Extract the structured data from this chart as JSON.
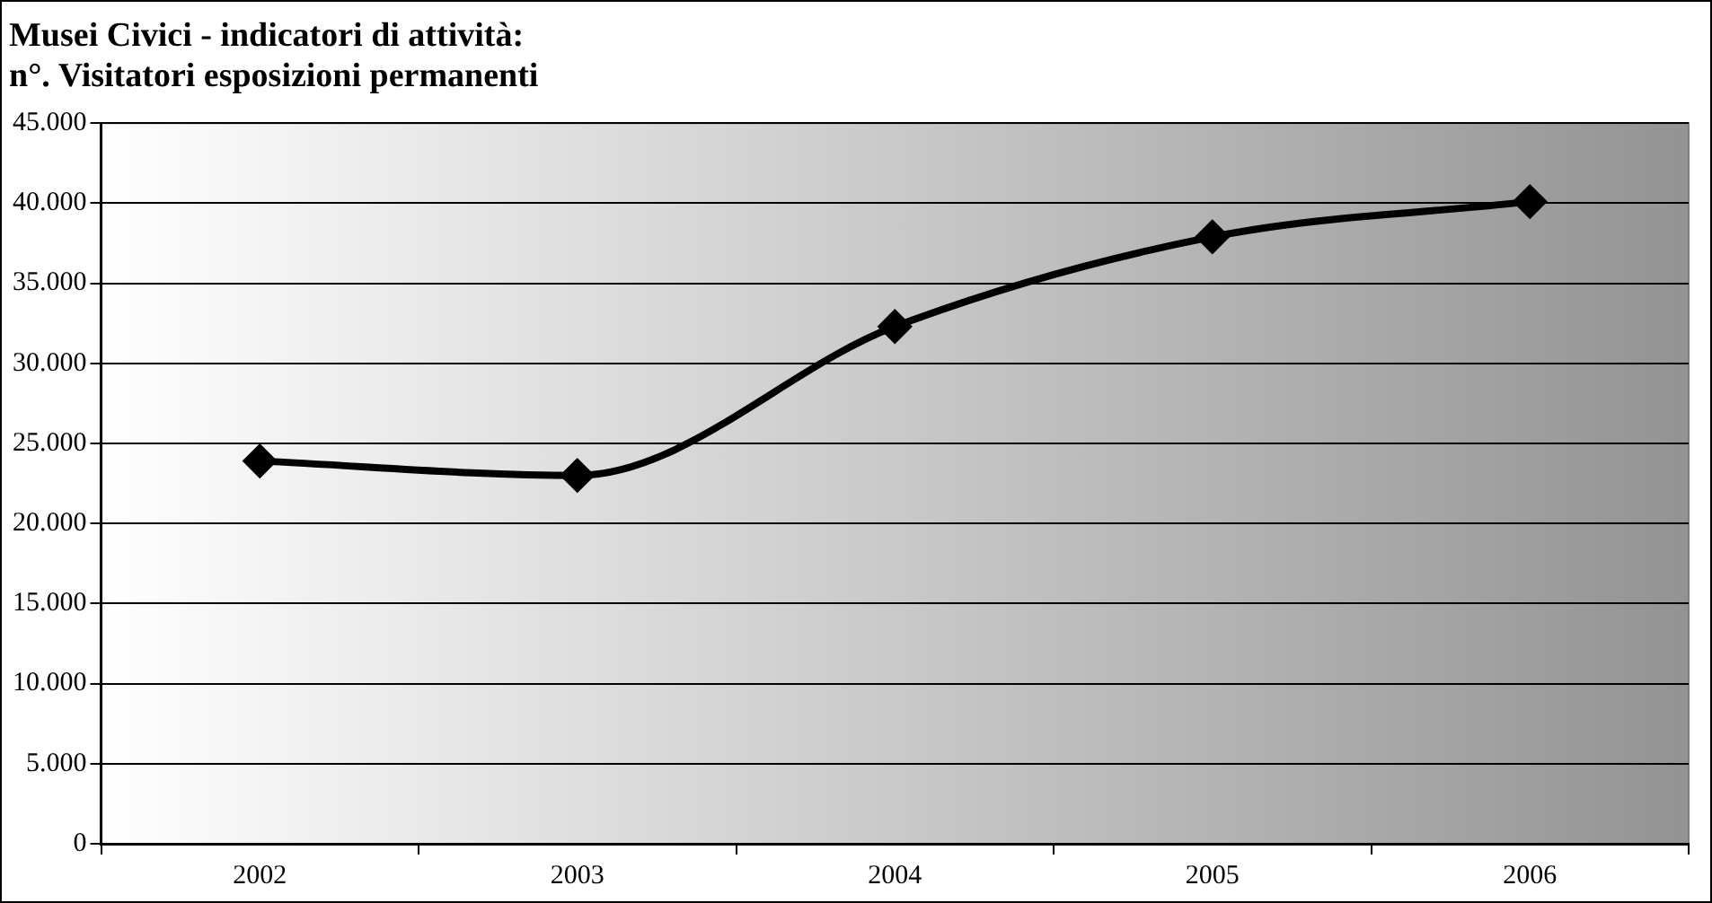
{
  "chart_data": {
    "type": "line",
    "title": "Musei Civici - indicatori di attività:\nn°. Visitatori esposizioni permanenti",
    "categories": [
      "2002",
      "2003",
      "2004",
      "2005",
      "2006"
    ],
    "series": [
      {
        "color": "#000000",
        "values": [
          23900,
          23000,
          32300,
          37900,
          40100
        ]
      }
    ],
    "ylim": [
      0,
      45000
    ],
    "yticks": [
      {
        "value": 0,
        "label": "0"
      },
      {
        "value": 5000,
        "label": "5.000"
      },
      {
        "value": 10000,
        "label": "10.000"
      },
      {
        "value": 15000,
        "label": "15.000"
      },
      {
        "value": 20000,
        "label": "20.000"
      },
      {
        "value": 25000,
        "label": "25.000"
      },
      {
        "value": 30000,
        "label": "30.000"
      },
      {
        "value": 35000,
        "label": "35.000"
      },
      {
        "value": 40000,
        "label": "40.000"
      },
      {
        "value": 45000,
        "label": "45.000"
      }
    ],
    "grid": "y",
    "legend": false,
    "marker": "diamond",
    "line_style": "solid"
  }
}
